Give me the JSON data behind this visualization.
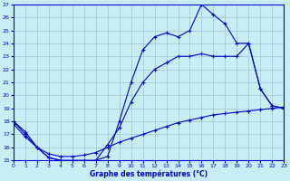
{
  "title": "Graphe des températures (°C)",
  "bg_color": "#c8eef5",
  "grid_color": "#a0ccd8",
  "line_color": "#0000cc",
  "x_min": 0,
  "x_max": 23,
  "y_min": 15,
  "y_max": 27,
  "line1_x": [
    0,
    1,
    2,
    3,
    4,
    5,
    6,
    7,
    8,
    9,
    10,
    11,
    12,
    13,
    14,
    15,
    16,
    17,
    18,
    19,
    20,
    21,
    22,
    23
  ],
  "line1_y": [
    18.0,
    17.0,
    16.0,
    15.2,
    15.0,
    15.0,
    15.0,
    15.0,
    15.3,
    18.0,
    21.0,
    23.5,
    24.5,
    24.8,
    24.5,
    25.0,
    27.0,
    26.2,
    25.5,
    24.0,
    24.0,
    20.5,
    19.2,
    19.0
  ],
  "line2_x": [
    0,
    1,
    2,
    3,
    4,
    5,
    6,
    7,
    8,
    9,
    10,
    11,
    12,
    13,
    14,
    15,
    16,
    17,
    18,
    19,
    20,
    21,
    22,
    23
  ],
  "line2_y": [
    18.0,
    17.2,
    16.0,
    15.2,
    15.0,
    14.8,
    14.8,
    15.0,
    16.2,
    17.5,
    19.5,
    21.0,
    22.0,
    22.5,
    23.0,
    23.0,
    23.2,
    23.0,
    23.0,
    23.0,
    24.0,
    20.5,
    19.2,
    19.0
  ],
  "line3_x": [
    0,
    1,
    2,
    3,
    4,
    5,
    6,
    7,
    8,
    9,
    10,
    11,
    12,
    13,
    14,
    15,
    16,
    17,
    18,
    19,
    20,
    21,
    22,
    23
  ],
  "line3_y": [
    17.8,
    16.8,
    16.0,
    15.5,
    15.3,
    15.3,
    15.4,
    15.6,
    16.0,
    16.4,
    16.7,
    17.0,
    17.3,
    17.6,
    17.9,
    18.1,
    18.3,
    18.5,
    18.6,
    18.7,
    18.8,
    18.9,
    19.0,
    19.1
  ]
}
